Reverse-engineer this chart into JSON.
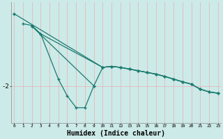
{
  "background_color": "#cceae8",
  "line_color": "#1a7a6e",
  "xlabel": "Humidex (Indice chaleur)",
  "xlabel_fontsize": 7,
  "grid_color_v": "#e8b0b0",
  "grid_color_h": "#e8b0b0",
  "x_ticks": [
    0,
    1,
    2,
    3,
    4,
    5,
    6,
    7,
    8,
    9,
    10,
    11,
    12,
    13,
    14,
    15,
    16,
    17,
    18,
    19,
    20,
    21,
    22,
    23
  ],
  "series": [
    [
      0.15,
      null,
      null,
      null,
      null,
      null,
      null,
      null,
      null,
      null,
      null,
      null,
      null,
      null,
      null,
      null,
      null,
      null,
      null,
      null,
      null,
      null,
      null,
      null
    ],
    [
      null,
      -0.15,
      -0.2,
      -0.45,
      null,
      -1.8,
      -2.3,
      -2.65,
      -2.65,
      -2.0,
      null,
      null,
      null,
      null,
      null,
      null,
      null,
      null,
      null,
      null,
      null,
      null,
      null,
      null
    ],
    [
      null,
      null,
      -0.22,
      -0.45,
      null,
      null,
      null,
      null,
      null,
      null,
      -1.45,
      -1.42,
      -1.45,
      -1.5,
      -1.55,
      -1.6,
      -1.65,
      -1.72,
      -1.8,
      -1.88,
      -1.95,
      -2.1,
      -2.18,
      -2.22
    ],
    [
      0.15,
      null,
      null,
      null,
      null,
      null,
      null,
      null,
      null,
      null,
      -1.45,
      -1.42,
      -1.45,
      -1.5,
      -1.55,
      -1.6,
      -1.65,
      -1.72,
      -1.8,
      -1.88,
      -1.95,
      -2.1,
      -2.18,
      -2.22
    ],
    [
      null,
      null,
      -0.22,
      null,
      null,
      null,
      null,
      null,
      null,
      -2.0,
      -1.45,
      -1.42,
      -1.45,
      -1.5,
      -1.55,
      -1.6,
      -1.65,
      -1.72,
      -1.8,
      -1.88,
      -1.95,
      -2.1,
      -2.18,
      -2.22
    ]
  ],
  "xlim": [
    -0.3,
    23.3
  ],
  "ylim": [
    -3.1,
    0.5
  ],
  "yticks": [
    -2
  ],
  "ytick_labels": [
    "-2"
  ],
  "figsize": [
    3.2,
    2.0
  ],
  "dpi": 100
}
